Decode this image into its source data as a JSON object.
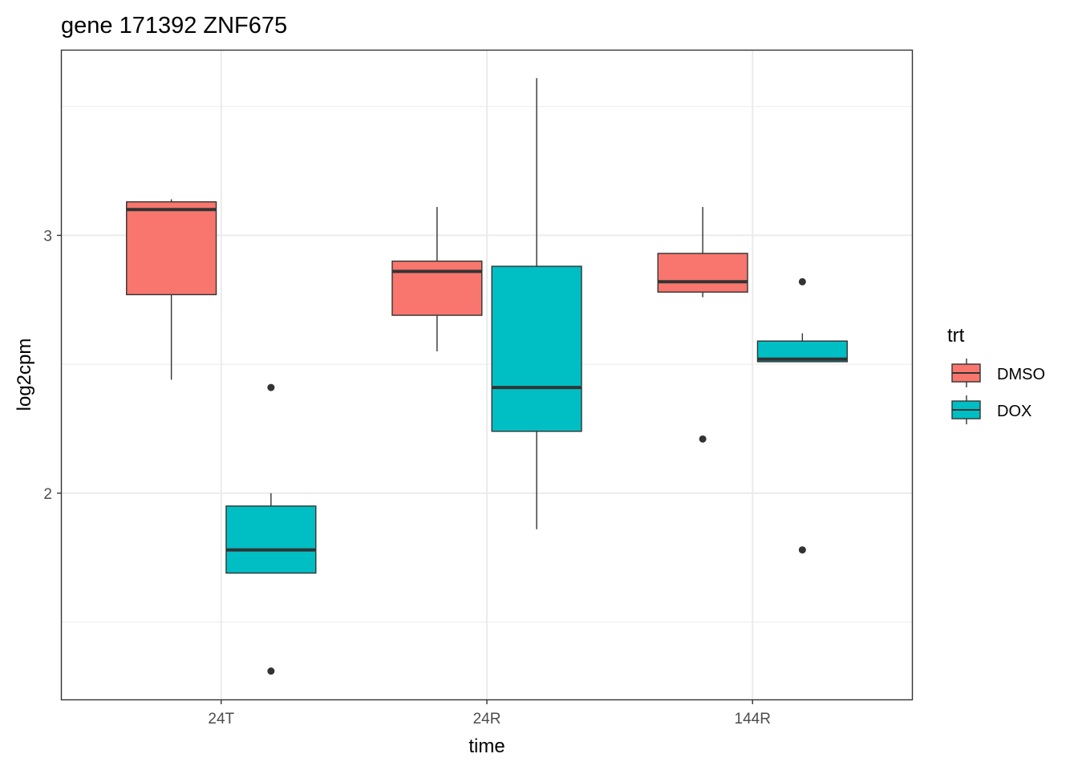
{
  "chart_data": {
    "type": "boxplot",
    "title": "gene 171392 ZNF675",
    "xlabel": "time",
    "ylabel": "log2cpm",
    "categories": [
      "24T",
      "24R",
      "144R"
    ],
    "y_ticks": [
      2,
      3
    ],
    "y_tick_labels": [
      "2",
      "3"
    ],
    "ylim": [
      1.2,
      3.72
    ],
    "grid": true,
    "legend": {
      "title": "trt",
      "position": "right"
    },
    "series": [
      {
        "name": "DMSO",
        "color": "#F8766D",
        "boxes": [
          {
            "category": "24T",
            "whisker_low": 2.44,
            "q1": 2.77,
            "median": 3.1,
            "q3": 3.13,
            "whisker_high": 3.14,
            "outliers": []
          },
          {
            "category": "24R",
            "whisker_low": 2.55,
            "q1": 2.69,
            "median": 2.86,
            "q3": 2.9,
            "whisker_high": 3.11,
            "outliers": []
          },
          {
            "category": "144R",
            "whisker_low": 2.76,
            "q1": 2.78,
            "median": 2.82,
            "q3": 2.93,
            "whisker_high": 3.11,
            "outliers": [
              2.21
            ]
          }
        ]
      },
      {
        "name": "DOX",
        "color": "#00BFC4",
        "boxes": [
          {
            "category": "24T",
            "whisker_low": 1.69,
            "q1": 1.69,
            "median": 1.78,
            "q3": 1.95,
            "whisker_high": 2.0,
            "outliers": [
              2.41,
              1.31
            ]
          },
          {
            "category": "24R",
            "whisker_low": 1.86,
            "q1": 2.24,
            "median": 2.41,
            "q3": 2.88,
            "whisker_high": 3.61,
            "outliers": []
          },
          {
            "category": "144R",
            "whisker_low": 2.51,
            "q1": 2.51,
            "median": 2.52,
            "q3": 2.59,
            "whisker_high": 2.62,
            "outliers": [
              2.82,
              1.78
            ]
          }
        ]
      }
    ]
  }
}
